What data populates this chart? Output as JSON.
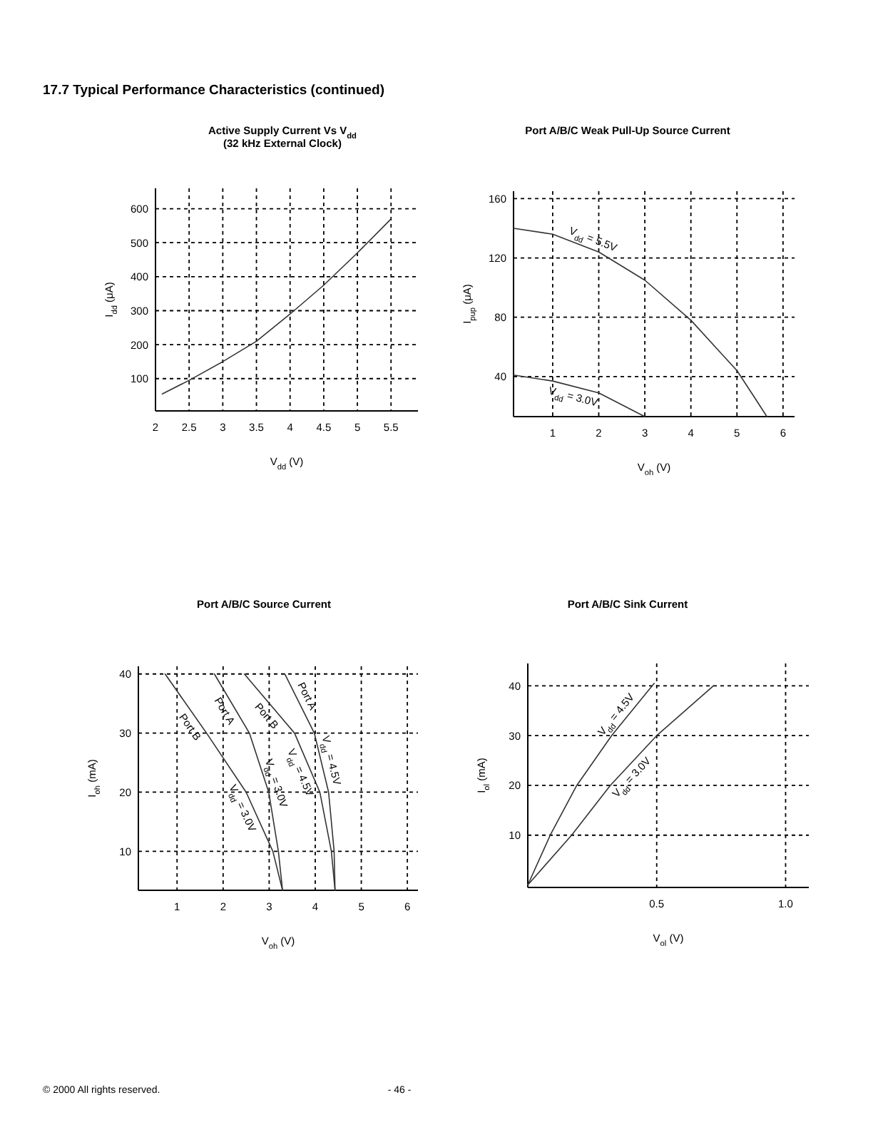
{
  "chart_data": [
    {
      "type": "other",
      "title": "17.7 Typical Performance Characteristics (continued)",
      "annotations": [
        "© 2000 All rights reserved.",
        "- 46 -"
      ]
    },
    {
      "type": "line",
      "title": "Active Supply Current Vs V$_{dd}$",
      "subtitle": "(32 kHz External Clock)",
      "xlabel": "V$_{dd}$ (V)",
      "ylabel": "I$_{dd}$ (μA)",
      "xlim": [
        2,
        5.9
      ],
      "ylim": [
        5,
        660
      ],
      "xticks": [
        2,
        2.5,
        3,
        3.5,
        4,
        4.5,
        5,
        5.5
      ],
      "yticks": [
        100,
        200,
        300,
        400,
        500,
        600
      ],
      "grid": true,
      "color": "#333333",
      "series": [
        {
          "x": [
            2.1,
            2.5,
            3,
            3.5,
            4,
            4.5,
            5,
            5.5
          ],
          "values": [
            55,
            95,
            150,
            210,
            290,
            375,
            470,
            570
          ]
        }
      ]
    },
    {
      "type": "line",
      "title": "Port A/B/C Weak Pull-Up Source Current",
      "xlabel": "V$_{oh}$ (V)",
      "ylabel": "I$_{pup}$ (μA)",
      "xlim": [
        0.15,
        6.25
      ],
      "ylim": [
        13,
        165
      ],
      "xticks": [
        1,
        2,
        3,
        4,
        5,
        6
      ],
      "yticks": [
        40,
        80,
        120,
        160
      ],
      "grid": true,
      "series": [
        {
          "color": "#333333",
          "x": [
            0.15,
            1,
            2,
            3,
            4,
            5,
            5.4,
            5.65
          ],
          "values": [
            140,
            136,
            124,
            105,
            78,
            44,
            25,
            13
          ]
        },
        {
          "color": "#333333",
          "x": [
            0.15,
            1,
            2,
            3
          ],
          "values": [
            41,
            37,
            29,
            13
          ]
        }
      ],
      "annotations": [
        {
          "text": "V$_{dd}$ = 5.5V",
          "x": 1.8,
          "y": 126.4
        },
        {
          "text": "V$_{dd}$ = 3.0V",
          "x": 1.5,
          "y": 33
        }
      ]
    },
    {
      "type": "line",
      "title": "Port A/B/C Source Current",
      "xlabel": "V$_{oh}$ (V)",
      "ylabel": "I$_{oh}$ (mA)",
      "xlim": [
        0.16,
        6.23
      ],
      "ylim": [
        3.4,
        41.3
      ],
      "xticks": [
        1,
        2,
        3,
        4,
        5,
        6
      ],
      "yticks": [
        10,
        20,
        30,
        40
      ],
      "grid": true,
      "series": [
        {
          "color": "#333333",
          "x": [
            0.74,
            1.64,
            2.5,
            3.08,
            3.29
          ],
          "values": [
            40,
            30,
            20,
            10,
            3.4
          ]
        },
        {
          "color": "#333333",
          "x": [
            1.81,
            2.57,
            2.99,
            3.2,
            3.29
          ],
          "values": [
            40,
            30,
            20,
            10,
            3.4
          ]
        },
        {
          "color": "#333333",
          "x": [
            2.46,
            3.55,
            4.1,
            4.35,
            4.43
          ],
          "values": [
            40,
            30,
            20,
            10,
            3.4
          ]
        },
        {
          "color": "#333333",
          "x": [
            3.34,
            3.98,
            4.29,
            4.41,
            4.43
          ],
          "values": [
            40,
            30,
            20,
            10,
            3.4
          ]
        }
      ],
      "annotations": [
        {
          "text": "Port B",
          "x": 1.46,
          "y": 32
        },
        {
          "text": "Port A",
          "x": 2.22,
          "y": 34.6
        },
        {
          "text": "Port B",
          "x": 3.11,
          "y": 34
        },
        {
          "text": "Port A",
          "x": 3.63,
          "y": 35.5
        },
        {
          "text": "V$_{dd}$ = 3.0V",
          "x": 2.62,
          "y": 18
        },
        {
          "text": "V$_{dd}$ = 3.0V",
          "x": 2.95,
          "y": 21
        },
        {
          "text": "V$_{dd}$ = 4.5V",
          "x": 3.88,
          "y": 24
        },
        {
          "text": "V$_{dd}$ = 4.5V",
          "x": 4.14,
          "y": 25
        }
      ]
    },
    {
      "type": "line",
      "title": "Port A/B/C Sink Current",
      "xlabel": "V$_{ol}$ (V)",
      "ylabel": "I$_{ol}$ (mA)",
      "xlim": [
        0,
        1.09
      ],
      "ylim": [
        -0.5,
        44.5
      ],
      "xticks": [
        0.5,
        {
          "value": 1,
          "label": "1.0"
        }
      ],
      "yticks": [
        10,
        20,
        30,
        40
      ],
      "grid": true,
      "series": [
        {
          "color": "#333333",
          "x": [
            0,
            0.087,
            0.19,
            0.325,
            0.49
          ],
          "values": [
            0,
            10,
            20,
            30,
            40.5
          ]
        },
        {
          "color": "#333333",
          "x": [
            0,
            0.17,
            0.32,
            0.5,
            0.72
          ],
          "values": [
            0,
            10,
            20,
            30,
            40
          ]
        }
      ],
      "annotations": [
        {
          "text": "V$_{dd}$ = 4.5V",
          "x": 0.372,
          "y": 33
        },
        {
          "text": "V$_{dd}$ = 3.0V",
          "x": 0.374,
          "y": 23
        }
      ]
    }
  ]
}
